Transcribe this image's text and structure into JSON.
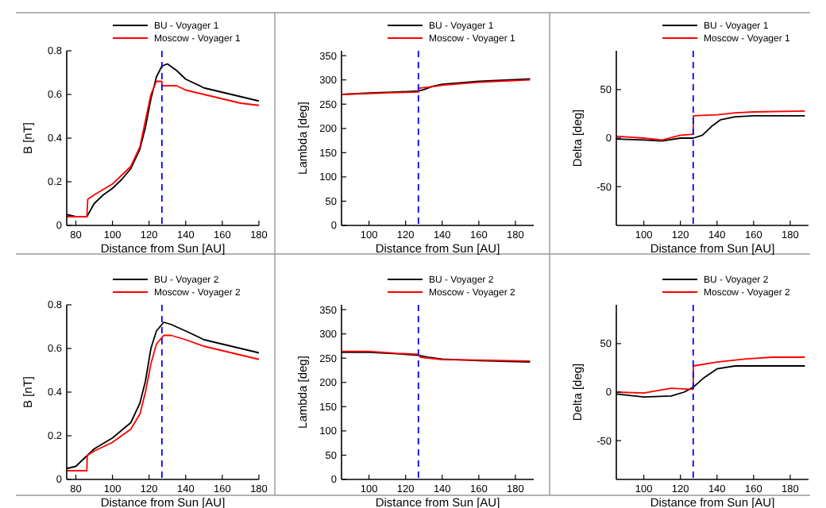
{
  "chart_data": [
    {
      "type": "line",
      "xlabel": "Distance from Sun [AU]",
      "ylabel": "B [nT]",
      "xlim": [
        75,
        180
      ],
      "xticks": [
        80,
        100,
        120,
        140,
        160,
        180
      ],
      "ylim": [
        0,
        0.8
      ],
      "yticks": [
        0,
        0.2,
        0.4,
        0.6,
        0.8
      ],
      "legend": "top right",
      "line_style": "solid",
      "ref_lines": [
        {
          "axis": "x",
          "value": 127,
          "color": "#0000ff",
          "line_style": "dashed"
        }
      ],
      "series": [
        {
          "name": "BU - Voyager 1",
          "color": "#000000",
          "x": [
            75,
            80,
            86,
            90,
            95,
            100,
            105,
            110,
            115,
            118,
            121,
            124,
            127,
            130,
            135,
            140,
            150,
            160,
            170,
            180
          ],
          "values": [
            0.05,
            0.04,
            0.04,
            0.1,
            0.14,
            0.17,
            0.21,
            0.26,
            0.35,
            0.45,
            0.58,
            0.68,
            0.73,
            0.74,
            0.71,
            0.67,
            0.63,
            0.61,
            0.59,
            0.57
          ]
        },
        {
          "name": "Moscow - Voyager 1",
          "color": "#ff0000",
          "x": [
            75,
            80,
            86,
            86.5,
            90,
            100,
            110,
            115,
            118,
            121,
            124,
            127,
            127.1,
            135,
            140,
            150,
            160,
            170,
            180
          ],
          "values": [
            0.04,
            0.04,
            0.04,
            0.12,
            0.14,
            0.19,
            0.27,
            0.36,
            0.48,
            0.6,
            0.66,
            0.66,
            0.64,
            0.64,
            0.62,
            0.6,
            0.58,
            0.56,
            0.55
          ]
        }
      ]
    },
    {
      "type": "line",
      "xlabel": "Distance from Sun [AU]",
      "ylabel": "Lambda [deg]",
      "xlim": [
        85,
        190
      ],
      "xticks": [
        100,
        120,
        140,
        160,
        180
      ],
      "ylim": [
        0,
        360
      ],
      "yticks": [
        0,
        50,
        100,
        150,
        200,
        250,
        300,
        350
      ],
      "legend": "top right",
      "line_style": "solid",
      "ref_lines": [
        {
          "axis": "x",
          "value": 127,
          "color": "#0000ff",
          "line_style": "dashed"
        }
      ],
      "series": [
        {
          "name": "BU - Voyager 1",
          "color": "#000000",
          "x": [
            85,
            100,
            115,
            127,
            130,
            135,
            140,
            160,
            188
          ],
          "values": [
            270,
            273,
            275,
            277,
            280,
            287,
            291,
            297,
            302
          ]
        },
        {
          "name": "Moscow - Voyager 1",
          "color": "#ff0000",
          "x": [
            85,
            100,
            115,
            127,
            127.1,
            135,
            140,
            160,
            188
          ],
          "values": [
            270,
            272,
            274,
            275,
            283,
            286,
            289,
            295,
            300
          ]
        }
      ]
    },
    {
      "type": "line",
      "xlabel": "Distance from Sun [AU]",
      "ylabel": "Delta [deg]",
      "xlim": [
        85,
        190
      ],
      "xticks": [
        100,
        120,
        140,
        160,
        180
      ],
      "ylim": [
        -90,
        90
      ],
      "yticks": [
        -50,
        0,
        50
      ],
      "legend": "top right",
      "line_style": "solid",
      "ref_lines": [
        {
          "axis": "x",
          "value": 127,
          "color": "#0000ff",
          "line_style": "dashed"
        }
      ],
      "series": [
        {
          "name": "BU - Voyager 1",
          "color": "#000000",
          "x": [
            85,
            100,
            110,
            120,
            127,
            132,
            137,
            142,
            150,
            160,
            188
          ],
          "values": [
            -1,
            -2,
            -3,
            0,
            0,
            3,
            12,
            19,
            22,
            23,
            23
          ]
        },
        {
          "name": "Moscow - Voyager 1",
          "color": "#ff0000",
          "x": [
            85,
            100,
            110,
            120,
            127,
            127.1,
            140,
            150,
            160,
            188
          ],
          "values": [
            2,
            0,
            -2,
            3,
            4,
            23,
            24,
            26,
            27,
            28
          ]
        }
      ]
    },
    {
      "type": "line",
      "xlabel": "Distance from Sun [AU]",
      "ylabel": "B [nT]",
      "xlim": [
        75,
        180
      ],
      "xticks": [
        80,
        100,
        120,
        140,
        160,
        180
      ],
      "ylim": [
        0,
        0.8
      ],
      "yticks": [
        0,
        0.2,
        0.4,
        0.6,
        0.8
      ],
      "legend": "top right",
      "line_style": "solid",
      "ref_lines": [
        {
          "axis": "x",
          "value": 127,
          "color": "#0000ff",
          "line_style": "dashed"
        }
      ],
      "series": [
        {
          "name": "BU - Voyager 2",
          "color": "#000000",
          "x": [
            75,
            80,
            85,
            90,
            100,
            110,
            115,
            118,
            121,
            124,
            128,
            132,
            140,
            150,
            160,
            170,
            180
          ],
          "values": [
            0.05,
            0.06,
            0.1,
            0.14,
            0.19,
            0.26,
            0.35,
            0.45,
            0.6,
            0.68,
            0.72,
            0.71,
            0.68,
            0.64,
            0.62,
            0.6,
            0.58
          ]
        },
        {
          "name": "Moscow - Voyager 2",
          "color": "#ff0000",
          "x": [
            75,
            86,
            86.2,
            90,
            100,
            110,
            115,
            118,
            121,
            124,
            128,
            132,
            140,
            150,
            160,
            170,
            180
          ],
          "values": [
            0.04,
            0.04,
            0.11,
            0.13,
            0.17,
            0.23,
            0.3,
            0.4,
            0.53,
            0.62,
            0.66,
            0.66,
            0.64,
            0.61,
            0.59,
            0.57,
            0.55
          ]
        }
      ]
    },
    {
      "type": "line",
      "xlabel": "Distance from Sun [AU]",
      "ylabel": "Lambda [deg]",
      "xlim": [
        85,
        190
      ],
      "xticks": [
        100,
        120,
        140,
        160,
        180
      ],
      "ylim": [
        0,
        360
      ],
      "yticks": [
        0,
        50,
        100,
        150,
        200,
        250,
        300,
        350
      ],
      "legend": "top right",
      "line_style": "solid",
      "ref_lines": [
        {
          "axis": "x",
          "value": 127,
          "color": "#0000ff",
          "line_style": "dashed"
        }
      ],
      "series": [
        {
          "name": "BU - Voyager 2",
          "color": "#000000",
          "x": [
            85,
            100,
            115,
            127,
            132,
            140,
            160,
            188
          ],
          "values": [
            262,
            262,
            259,
            256,
            252,
            248,
            245,
            242
          ]
        },
        {
          "name": "Moscow - Voyager 2",
          "color": "#ff0000",
          "x": [
            85,
            100,
            115,
            127,
            128,
            140,
            160,
            188
          ],
          "values": [
            264,
            264,
            260,
            258,
            252,
            247,
            246,
            244
          ]
        }
      ]
    },
    {
      "type": "line",
      "xlabel": "Distance from Sun [AU]",
      "ylabel": "Delta [deg]",
      "xlim": [
        85,
        190
      ],
      "xticks": [
        100,
        120,
        140,
        160,
        180
      ],
      "ylim": [
        -90,
        90
      ],
      "yticks": [
        -50,
        0,
        50
      ],
      "legend": "top right",
      "line_style": "solid",
      "ref_lines": [
        {
          "axis": "x",
          "value": 127,
          "color": "#0000ff",
          "line_style": "dashed"
        }
      ],
      "series": [
        {
          "name": "BU - Voyager 2",
          "color": "#000000",
          "x": [
            85,
            100,
            115,
            122,
            127,
            133,
            140,
            150,
            188
          ],
          "values": [
            -2,
            -5,
            -4,
            0,
            5,
            15,
            24,
            27,
            27
          ]
        },
        {
          "name": "Moscow - Voyager 2",
          "color": "#ff0000",
          "x": [
            85,
            100,
            115,
            125,
            127,
            127.1,
            140,
            155,
            170,
            188
          ],
          "values": [
            0,
            -1,
            4,
            3,
            3,
            27,
            31,
            34,
            36,
            36
          ]
        }
      ]
    }
  ]
}
